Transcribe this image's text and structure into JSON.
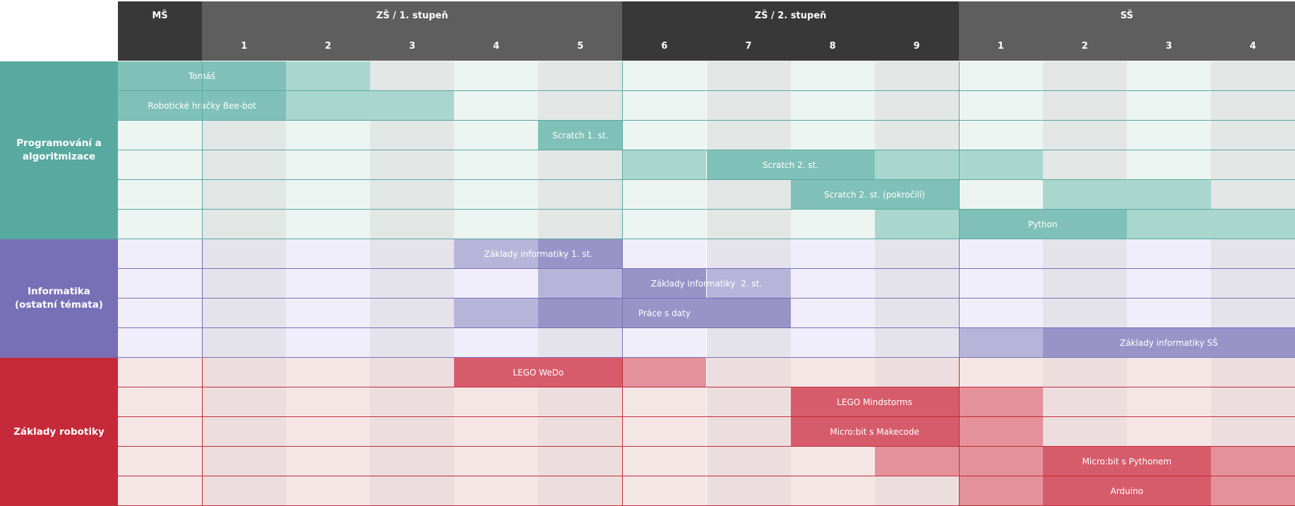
{
  "header": {
    "stages": [
      {
        "key": "ms",
        "label": "MŠ"
      },
      {
        "key": "zs1",
        "label": "ZŠ / 1. stupeň"
      },
      {
        "key": "zs2",
        "label": "ZŠ / 2. stupeň"
      },
      {
        "key": "ss",
        "label": "SŠ"
      }
    ],
    "grades": [
      "1",
      "2",
      "3",
      "4",
      "5",
      "6",
      "7",
      "8",
      "9",
      "1",
      "2",
      "3",
      "4"
    ]
  },
  "colors": {
    "header_dark": "#383838",
    "header_mid": "#5e5e5e",
    "programming": "#58aaa0",
    "informatics": "#7870b6",
    "robotics": "#c62a3a"
  },
  "categories": [
    {
      "key": "programming",
      "label": "Programování a algoritmizace",
      "rows": 6,
      "palette": {
        "lightA": "#ecf4f1",
        "lightB": "#e2e6e5",
        "strong": "#7fc0b8",
        "soft": "#a9d6cf",
        "line": "#58aaa0"
      },
      "rows_data": [
        {
          "name": "Tomáš",
          "label_start": 0,
          "label_end": 2,
          "segments": [
            {
              "start": 0,
              "end": 2,
              "tone": "strong"
            },
            {
              "start": 2,
              "end": 3,
              "tone": "soft"
            }
          ]
        },
        {
          "name": "Robotické hračky Bee-bot",
          "label_start": 0,
          "label_end": 2,
          "segments": [
            {
              "start": 0,
              "end": 2,
              "tone": "strong"
            },
            {
              "start": 2,
              "end": 4,
              "tone": "soft"
            }
          ]
        },
        {
          "name": "Scratch 1. st.",
          "label_start": 5,
          "label_end": 6,
          "segments": [
            {
              "start": 5,
              "end": 6,
              "tone": "strong"
            }
          ]
        },
        {
          "name": "Scratch 2. st.",
          "label_start": 7,
          "label_end": 9,
          "segments": [
            {
              "start": 6,
              "end": 7,
              "tone": "soft"
            },
            {
              "start": 7,
              "end": 9,
              "tone": "strong"
            },
            {
              "start": 9,
              "end": 11,
              "tone": "soft"
            }
          ]
        },
        {
          "name": "Scratch 2. st. (pokročilí)",
          "label_start": 8,
          "label_end": 10,
          "segments": [
            {
              "start": 8,
              "end": 10,
              "tone": "strong"
            },
            {
              "start": 11,
              "end": 13,
              "tone": "soft"
            }
          ]
        },
        {
          "name": "Python",
          "label_start": 10,
          "label_end": 12,
          "segments": [
            {
              "start": 9,
              "end": 10,
              "tone": "soft"
            },
            {
              "start": 10,
              "end": 12,
              "tone": "strong"
            },
            {
              "start": 12,
              "end": 14,
              "tone": "soft"
            }
          ]
        }
      ]
    },
    {
      "key": "informatics",
      "label": "Informatika (ostatní témata)",
      "rows": 4,
      "palette": {
        "lightA": "#efeefa",
        "lightB": "#e4e3eb",
        "strong": "#9894c8",
        "soft": "#b7b4da",
        "line": "#7870b6"
      },
      "rows_data": [
        {
          "name": "Základy informatiky 1. st.",
          "label_start": 4,
          "label_end": 6,
          "segments": [
            {
              "start": 4,
              "end": 5,
              "tone": "soft"
            },
            {
              "start": 5,
              "end": 6,
              "tone": "strong"
            }
          ]
        },
        {
          "name": "Základy informatiky  2. st.",
          "label_start": 6,
          "label_end": 8,
          "segments": [
            {
              "start": 5,
              "end": 6,
              "tone": "soft"
            },
            {
              "start": 6,
              "end": 7,
              "tone": "strong"
            },
            {
              "start": 7,
              "end": 8,
              "tone": "soft"
            }
          ]
        },
        {
          "name": "Práce s daty",
          "label_start": 5,
          "label_end": 8,
          "segments": [
            {
              "start": 4,
              "end": 5,
              "tone": "soft"
            },
            {
              "start": 5,
              "end": 8,
              "tone": "strong"
            }
          ]
        },
        {
          "name": "Základy informatiky SŠ",
          "label_start": 11,
          "label_end": 14,
          "segments": [
            {
              "start": 10,
              "end": 11,
              "tone": "soft"
            },
            {
              "start": 11,
              "end": 14,
              "tone": "strong"
            }
          ]
        }
      ]
    },
    {
      "key": "robotics",
      "label": "Základy robotiky",
      "rows": 5,
      "palette": {
        "lightA": "#f5e6e6",
        "lightB": "#ecdede",
        "strong": "#d75c6b",
        "soft": "#e4919a",
        "line": "#c62a3a"
      },
      "rows_data": [
        {
          "name": "LEGO WeDo",
          "label_start": 4,
          "label_end": 6,
          "segments": [
            {
              "start": 4,
              "end": 6,
              "tone": "strong"
            },
            {
              "start": 6,
              "end": 7,
              "tone": "soft"
            }
          ]
        },
        {
          "name": "LEGO Mindstorms",
          "label_start": 8,
          "label_end": 10,
          "segments": [
            {
              "start": 8,
              "end": 10,
              "tone": "strong"
            },
            {
              "start": 10,
              "end": 11,
              "tone": "soft"
            }
          ]
        },
        {
          "name": "Micro:bit s Makecode",
          "label_start": 8,
          "label_end": 10,
          "segments": [
            {
              "start": 8,
              "end": 10,
              "tone": "strong"
            },
            {
              "start": 10,
              "end": 11,
              "tone": "soft"
            }
          ]
        },
        {
          "name": "Micro:bit s Pythonem",
          "label_start": 11,
          "label_end": 13,
          "segments": [
            {
              "start": 9,
              "end": 11,
              "tone": "soft"
            },
            {
              "start": 11,
              "end": 13,
              "tone": "strong"
            },
            {
              "start": 13,
              "end": 14,
              "tone": "soft"
            }
          ]
        },
        {
          "name": "Arduino",
          "label_start": 11,
          "label_end": 13,
          "segments": [
            {
              "start": 10,
              "end": 11,
              "tone": "soft"
            },
            {
              "start": 11,
              "end": 13,
              "tone": "strong"
            },
            {
              "start": 13,
              "end": 14,
              "tone": "soft"
            }
          ]
        }
      ]
    }
  ]
}
